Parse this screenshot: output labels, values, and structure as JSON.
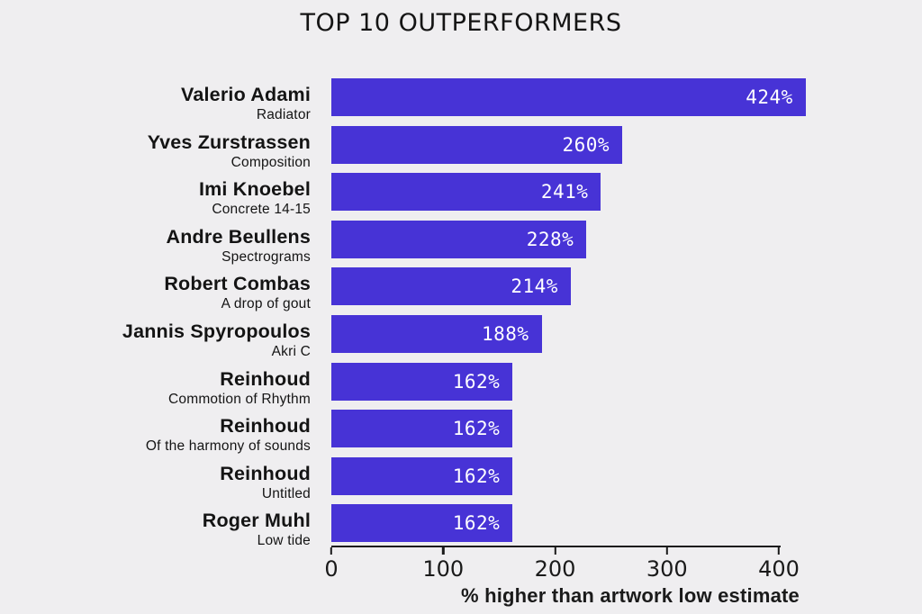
{
  "chart_data": {
    "type": "bar",
    "orientation": "horizontal",
    "title": "TOP 10 OUTPERFORMERS",
    "xlabel": "% higher than artwork low estimate",
    "xlim": [
      0,
      400
    ],
    "xticks": [
      0,
      100,
      200,
      300,
      400
    ],
    "grid": false,
    "legend": false,
    "colors": {
      "bar": "#4733d6",
      "background": "#efeef0",
      "text": "#141414",
      "axis": "#1a1a1a",
      "value_label": "#ffffff"
    },
    "bars": [
      {
        "artist": "Valerio Adami",
        "artwork": "Radiator",
        "value": 424,
        "label": "424%"
      },
      {
        "artist": "Yves Zurstrassen",
        "artwork": "Composition",
        "value": 260,
        "label": "260%"
      },
      {
        "artist": "Imi Knoebel",
        "artwork": "Concrete 14-15",
        "value": 241,
        "label": "241%"
      },
      {
        "artist": "Andre Beullens",
        "artwork": "Spectrograms",
        "value": 228,
        "label": "228%"
      },
      {
        "artist": "Robert Combas",
        "artwork": "A drop of gout",
        "value": 214,
        "label": "214%"
      },
      {
        "artist": "Jannis Spyropoulos",
        "artwork": "Akri C",
        "value": 188,
        "label": "188%"
      },
      {
        "artist": "Reinhoud",
        "artwork": "Commotion of Rhythm",
        "value": 162,
        "label": "162%"
      },
      {
        "artist": "Reinhoud",
        "artwork": "Of the harmony of sounds",
        "value": 162,
        "label": "162%"
      },
      {
        "artist": "Reinhoud",
        "artwork": "Untitled",
        "value": 162,
        "label": "162%"
      },
      {
        "artist": "Roger Muhl",
        "artwork": "Low tide",
        "value": 162,
        "label": "162%"
      }
    ]
  }
}
